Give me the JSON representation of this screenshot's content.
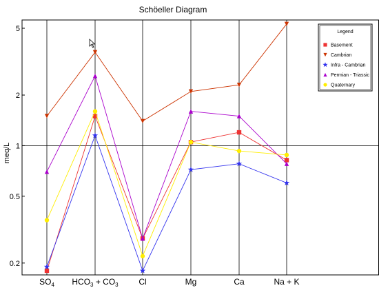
{
  "chart_data": {
    "type": "line",
    "title": "Schöeller Diagram",
    "ylabel": "meq/L",
    "xlabel": "",
    "y_scale": "log",
    "ylim": [
      0.17,
      5.6
    ],
    "grid": "vertical lines at each parameter, horizontal reference line at 1",
    "categories": [
      "SO4",
      "HCO3 + CO3",
      "Cl",
      "Mg",
      "Ca",
      "Na + K"
    ],
    "x_tick_labels": [
      {
        "main": "SO",
        "sub": "4",
        "rest": ""
      },
      {
        "main": "HCO",
        "sub": "3",
        "rest": " + CO",
        "sub2": "3"
      },
      {
        "main": "Cl",
        "sub": "",
        "rest": ""
      },
      {
        "main": "Mg",
        "sub": "",
        "rest": ""
      },
      {
        "main": "Ca",
        "sub": "",
        "rest": ""
      },
      {
        "main": "Na + K",
        "sub": "",
        "rest": ""
      }
    ],
    "y_ticks": [
      {
        "value": 0.2,
        "label": "0.2"
      },
      {
        "value": 0.5,
        "label": "0.5"
      },
      {
        "value": 1,
        "label": "1"
      },
      {
        "value": 2,
        "label": "2"
      },
      {
        "value": 5,
        "label": "5"
      }
    ],
    "legend": {
      "title": "Legend",
      "position": "top-right"
    },
    "series": [
      {
        "name": "Basement",
        "color": "#ee3333",
        "marker": "square",
        "values": [
          0.18,
          1.5,
          0.28,
          1.05,
          1.2,
          0.82
        ]
      },
      {
        "name": "Cambrian",
        "color": "#cc3300",
        "marker": "triangle-down",
        "values": [
          1.5,
          3.6,
          1.4,
          2.1,
          2.3,
          5.3
        ]
      },
      {
        "name": "Infra - Cambrian",
        "color": "#3333ee",
        "marker": "star",
        "values": [
          0.19,
          1.15,
          0.18,
          0.72,
          0.78,
          0.6
        ]
      },
      {
        "name": "Permian - Triassic",
        "color": "#aa00cc",
        "marker": "triangle-up",
        "values": [
          0.7,
          2.6,
          0.28,
          1.6,
          1.5,
          0.78
        ]
      },
      {
        "name": "Quaternary",
        "color": "#ffee00",
        "marker": "circle",
        "values": [
          0.36,
          1.6,
          0.22,
          1.05,
          0.93,
          0.88
        ]
      }
    ]
  }
}
